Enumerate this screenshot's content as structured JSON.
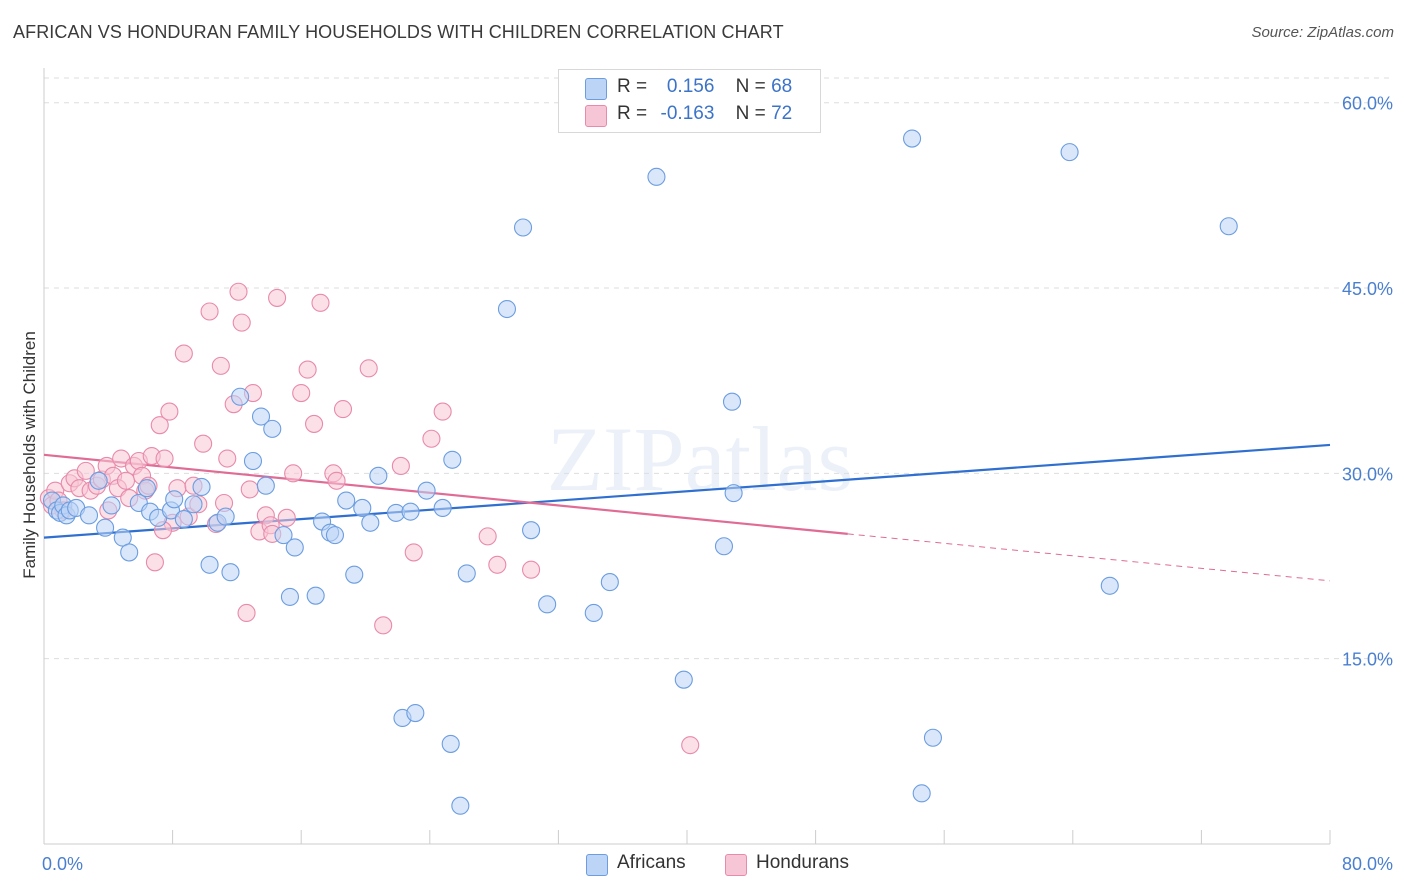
{
  "title": "AFRICAN VS HONDURAN FAMILY HOUSEHOLDS WITH CHILDREN CORRELATION CHART",
  "source": "Source: ZipAtlas.com",
  "watermark": "ZIPatlas",
  "colors": {
    "africans": "#6b9de0",
    "africans_fill": "#bcd4f5",
    "africans_line": "#2f6fcf",
    "hondurans": "#e88aaa",
    "hondurans_fill": "#f7c6d6",
    "hondurans_line": "#e06b95",
    "grid": "#dddddd",
    "tick_label": "#4a7fd0"
  },
  "legend": {
    "africans": {
      "r_label": "R =",
      "r_value": "0.156",
      "n_label": "N =",
      "n_value": "68"
    },
    "hondurans": {
      "r_label": "R =",
      "r_value": "-0.163",
      "n_label": "N =",
      "n_value": "72"
    }
  },
  "bottom_legend": {
    "africans": "Africans",
    "hondurans": "Hondurans"
  },
  "chart_data": {
    "type": "scatter",
    "ylabel": "Family Households with Children",
    "x_tick_labels": [
      "0.0%",
      "80.0%"
    ],
    "y_tick_labels": [
      "15.0%",
      "30.0%",
      "45.0%",
      "60.0%"
    ],
    "y_ticks": [
      15,
      30,
      45,
      60
    ],
    "xlim": [
      0,
      80
    ],
    "ylim": [
      0,
      62
    ],
    "grid": true,
    "legend_position": "top-center",
    "series": [
      {
        "name": "Africans",
        "r": 0.156,
        "n": 68,
        "trend": {
          "x": [
            0,
            80
          ],
          "y": [
            24.8,
            32.3
          ]
        },
        "points": [
          [
            0.5,
            27.8
          ],
          [
            0.8,
            27.0
          ],
          [
            1.0,
            26.8
          ],
          [
            1.2,
            27.4
          ],
          [
            1.4,
            26.6
          ],
          [
            1.6,
            27.0
          ],
          [
            2.0,
            27.2
          ],
          [
            2.8,
            26.6
          ],
          [
            3.4,
            29.4
          ],
          [
            3.8,
            25.6
          ],
          [
            4.2,
            27.4
          ],
          [
            4.9,
            24.8
          ],
          [
            5.3,
            23.6
          ],
          [
            5.9,
            27.6
          ],
          [
            6.4,
            28.8
          ],
          [
            6.6,
            26.9
          ],
          [
            7.1,
            26.4
          ],
          [
            7.9,
            27.0
          ],
          [
            8.1,
            27.9
          ],
          [
            8.7,
            26.3
          ],
          [
            9.3,
            27.5
          ],
          [
            9.8,
            28.9
          ],
          [
            10.3,
            22.6
          ],
          [
            10.8,
            26.0
          ],
          [
            11.3,
            26.5
          ],
          [
            11.6,
            22.0
          ],
          [
            12.2,
            36.2
          ],
          [
            13.0,
            31.0
          ],
          [
            13.5,
            34.6
          ],
          [
            13.8,
            29.0
          ],
          [
            14.2,
            33.6
          ],
          [
            14.9,
            25.0
          ],
          [
            15.3,
            20.0
          ],
          [
            15.6,
            24.0
          ],
          [
            16.9,
            20.1
          ],
          [
            17.3,
            26.1
          ],
          [
            17.8,
            25.2
          ],
          [
            18.1,
            25.0
          ],
          [
            18.8,
            27.8
          ],
          [
            19.3,
            21.8
          ],
          [
            19.8,
            27.2
          ],
          [
            20.3,
            26.0
          ],
          [
            20.8,
            29.8
          ],
          [
            21.9,
            26.8
          ],
          [
            22.8,
            26.9
          ],
          [
            23.8,
            28.6
          ],
          [
            24.8,
            27.2
          ],
          [
            25.4,
            31.1
          ],
          [
            26.3,
            21.9
          ],
          [
            28.8,
            43.3
          ],
          [
            29.8,
            49.9
          ],
          [
            30.3,
            25.4
          ],
          [
            31.3,
            19.4
          ],
          [
            34.2,
            18.7
          ],
          [
            35.2,
            21.2
          ],
          [
            38.1,
            54.0
          ],
          [
            39.8,
            13.3
          ],
          [
            42.3,
            24.1
          ],
          [
            42.8,
            35.8
          ],
          [
            42.9,
            28.4
          ],
          [
            54.0,
            57.1
          ],
          [
            54.6,
            4.1
          ],
          [
            55.3,
            8.6
          ],
          [
            63.8,
            56.0
          ],
          [
            66.3,
            20.9
          ],
          [
            73.7,
            50.0
          ],
          [
            22.3,
            10.2
          ],
          [
            23.1,
            10.6
          ],
          [
            25.3,
            8.1
          ],
          [
            25.9,
            3.1
          ]
        ]
      },
      {
        "name": "Hondurans",
        "r": -0.163,
        "n": 72,
        "trend": {
          "x": [
            0,
            50
          ],
          "y": [
            31.5,
            25.1
          ]
        },
        "trend_dashed": {
          "x": [
            50,
            80
          ],
          "y": [
            25.1,
            21.3
          ]
        },
        "points": [
          [
            0.3,
            28.0
          ],
          [
            0.5,
            27.4
          ],
          [
            0.7,
            28.6
          ],
          [
            0.9,
            27.8
          ],
          [
            1.2,
            27.0
          ],
          [
            1.6,
            29.2
          ],
          [
            1.9,
            29.6
          ],
          [
            2.2,
            28.8
          ],
          [
            2.6,
            30.2
          ],
          [
            2.9,
            28.6
          ],
          [
            3.3,
            29.0
          ],
          [
            3.6,
            29.5
          ],
          [
            3.9,
            30.6
          ],
          [
            4.3,
            29.8
          ],
          [
            4.6,
            28.8
          ],
          [
            4.8,
            31.2
          ],
          [
            5.1,
            29.4
          ],
          [
            5.3,
            28.0
          ],
          [
            5.6,
            30.6
          ],
          [
            5.9,
            31.0
          ],
          [
            6.1,
            29.8
          ],
          [
            6.3,
            28.6
          ],
          [
            6.5,
            29.0
          ],
          [
            6.7,
            31.4
          ],
          [
            6.9,
            22.8
          ],
          [
            7.2,
            33.9
          ],
          [
            7.5,
            31.2
          ],
          [
            7.8,
            35.0
          ],
          [
            8.0,
            26.0
          ],
          [
            8.3,
            28.8
          ],
          [
            8.7,
            39.7
          ],
          [
            9.0,
            26.5
          ],
          [
            9.3,
            29.0
          ],
          [
            9.6,
            27.5
          ],
          [
            9.9,
            32.4
          ],
          [
            10.3,
            43.1
          ],
          [
            10.7,
            25.9
          ],
          [
            11.0,
            38.7
          ],
          [
            11.4,
            31.2
          ],
          [
            11.8,
            35.6
          ],
          [
            12.1,
            44.7
          ],
          [
            12.3,
            42.2
          ],
          [
            12.6,
            18.7
          ],
          [
            13.0,
            36.5
          ],
          [
            13.4,
            25.3
          ],
          [
            13.8,
            26.6
          ],
          [
            14.1,
            25.8
          ],
          [
            14.5,
            44.2
          ],
          [
            15.1,
            26.4
          ],
          [
            15.5,
            30.0
          ],
          [
            16.0,
            36.5
          ],
          [
            16.4,
            38.4
          ],
          [
            16.8,
            34.0
          ],
          [
            17.2,
            43.8
          ],
          [
            18.0,
            30.0
          ],
          [
            18.2,
            29.4
          ],
          [
            18.6,
            35.2
          ],
          [
            20.2,
            38.5
          ],
          [
            21.1,
            17.7
          ],
          [
            22.2,
            30.6
          ],
          [
            23.0,
            23.6
          ],
          [
            24.1,
            32.8
          ],
          [
            24.8,
            35.0
          ],
          [
            27.6,
            24.9
          ],
          [
            28.2,
            22.6
          ],
          [
            30.3,
            22.2
          ],
          [
            40.2,
            8.0
          ],
          [
            7.4,
            25.4
          ],
          [
            11.2,
            27.6
          ],
          [
            12.8,
            28.7
          ],
          [
            14.2,
            25.1
          ],
          [
            4.0,
            27.0
          ]
        ]
      }
    ]
  }
}
